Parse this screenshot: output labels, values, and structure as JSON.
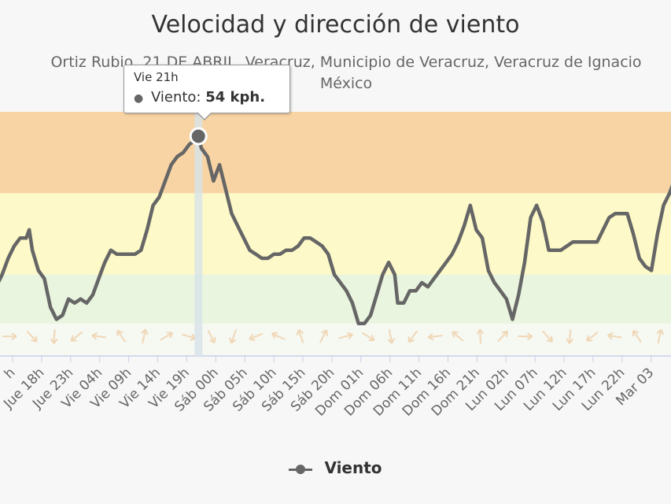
{
  "chart": {
    "title": "Velocidad y dirección de viento",
    "subtitle_line1": "Ortiz Rubio, 21 DE ABRIL, Veracruz, Municipio de Veracruz, Veracruz de Ignacio",
    "subtitle_line2": "México"
  },
  "tooltip": {
    "header": "Vie 21h",
    "series_label": "Viento:",
    "value_text": "54 kph."
  },
  "legend": {
    "label": "Viento"
  },
  "colors": {
    "line": "#666666",
    "band_high": "#f8d4a4",
    "band_mid": "#fdf9c8",
    "band_low": "#e9f5df",
    "background": "#f7f7f7"
  },
  "chart_data": {
    "type": "line",
    "x_tick_labels": [
      "h",
      "Jue 18h",
      "Jue 23h",
      "Vie 04h",
      "Vie 09h",
      "Vie 14h",
      "Vie 19h",
      "Sáb 00h",
      "Sáb 05h",
      "Sáb 10h",
      "Sáb 15h",
      "Sáb 20h",
      "Dom 01h",
      "Dom 06h",
      "Dom 11h",
      "Dom 16h",
      "Dom 21h",
      "Lun 02h",
      "Lun 07h",
      "Lun 12h",
      "Lun 17h",
      "Lun 22h",
      "Mar 03"
    ],
    "x_range_hours": [
      0,
      112
    ],
    "ylim": [
      0,
      60
    ],
    "bands": [
      {
        "from": 0,
        "to": 20,
        "color": "band_low"
      },
      {
        "from": 20,
        "to": 40,
        "color": "band_mid"
      },
      {
        "from": 40,
        "to": 60,
        "color": "band_high"
      }
    ],
    "series": [
      {
        "name": "Viento",
        "data": [
          [
            0,
            17
          ],
          [
            1,
            20
          ],
          [
            2,
            24
          ],
          [
            3,
            27
          ],
          [
            4,
            29
          ],
          [
            5,
            29
          ],
          [
            5.5,
            31
          ],
          [
            6,
            26
          ],
          [
            7,
            21
          ],
          [
            8,
            19
          ],
          [
            9,
            12
          ],
          [
            10,
            9
          ],
          [
            11,
            10
          ],
          [
            12,
            14
          ],
          [
            13,
            13
          ],
          [
            14,
            14
          ],
          [
            15,
            13
          ],
          [
            16,
            15
          ],
          [
            17,
            19
          ],
          [
            18,
            23
          ],
          [
            19,
            26
          ],
          [
            20,
            25
          ],
          [
            21,
            25
          ],
          [
            22,
            25
          ],
          [
            23,
            25
          ],
          [
            24,
            26
          ],
          [
            25,
            31
          ],
          [
            26,
            37
          ],
          [
            27,
            39
          ],
          [
            28,
            43
          ],
          [
            29,
            47
          ],
          [
            30,
            49
          ],
          [
            31,
            50
          ],
          [
            32,
            52
          ],
          [
            33,
            53
          ],
          [
            33.5,
            54
          ],
          [
            34,
            51
          ],
          [
            35,
            49
          ],
          [
            36,
            43
          ],
          [
            37,
            47
          ],
          [
            38,
            41
          ],
          [
            39,
            35
          ],
          [
            40,
            32
          ],
          [
            41,
            29
          ],
          [
            42,
            26
          ],
          [
            43,
            25
          ],
          [
            44,
            24
          ],
          [
            45,
            24
          ],
          [
            46,
            25
          ],
          [
            47,
            25
          ],
          [
            48,
            26
          ],
          [
            49,
            26
          ],
          [
            50,
            27
          ],
          [
            51,
            29
          ],
          [
            52,
            29
          ],
          [
            53,
            28
          ],
          [
            54,
            27
          ],
          [
            55,
            25
          ],
          [
            56,
            20
          ],
          [
            57,
            18
          ],
          [
            58,
            16
          ],
          [
            59,
            13
          ],
          [
            60,
            8
          ],
          [
            61,
            8
          ],
          [
            62,
            10
          ],
          [
            63,
            15
          ],
          [
            64,
            20
          ],
          [
            65,
            23
          ],
          [
            66,
            20
          ],
          [
            66.5,
            13
          ],
          [
            67.5,
            13
          ],
          [
            68.5,
            16
          ],
          [
            69.5,
            16
          ],
          [
            70.5,
            18
          ],
          [
            71.5,
            17
          ],
          [
            72.5,
            19
          ],
          [
            73.5,
            21
          ],
          [
            74.5,
            23
          ],
          [
            75.5,
            25
          ],
          [
            76.5,
            28
          ],
          [
            77.5,
            32
          ],
          [
            78.5,
            37
          ],
          [
            79.5,
            31
          ],
          [
            80.5,
            29
          ],
          [
            81.5,
            21
          ],
          [
            82.5,
            18
          ],
          [
            83.5,
            16
          ],
          [
            84.5,
            14
          ],
          [
            85.5,
            9
          ],
          [
            86.5,
            15
          ],
          [
            87.5,
            23
          ],
          [
            88.5,
            34
          ],
          [
            89.5,
            37
          ],
          [
            90.5,
            33
          ],
          [
            91.5,
            26
          ],
          [
            92.5,
            26
          ],
          [
            93.5,
            26
          ],
          [
            94.5,
            27
          ],
          [
            95.5,
            28
          ],
          [
            96.5,
            28
          ],
          [
            97.5,
            28
          ],
          [
            98.5,
            28
          ],
          [
            99.5,
            28
          ],
          [
            100.5,
            31
          ],
          [
            101.5,
            34
          ],
          [
            102.5,
            35
          ],
          [
            103.5,
            35
          ],
          [
            104.5,
            35
          ],
          [
            105.5,
            30
          ],
          [
            106.5,
            24
          ],
          [
            107.5,
            22
          ],
          [
            108.5,
            21
          ],
          [
            109.5,
            30
          ],
          [
            110.5,
            37
          ],
          [
            111.5,
            40
          ],
          [
            112,
            42
          ]
        ]
      }
    ],
    "highlight_point": {
      "x": 33.5,
      "y": 54
    }
  }
}
